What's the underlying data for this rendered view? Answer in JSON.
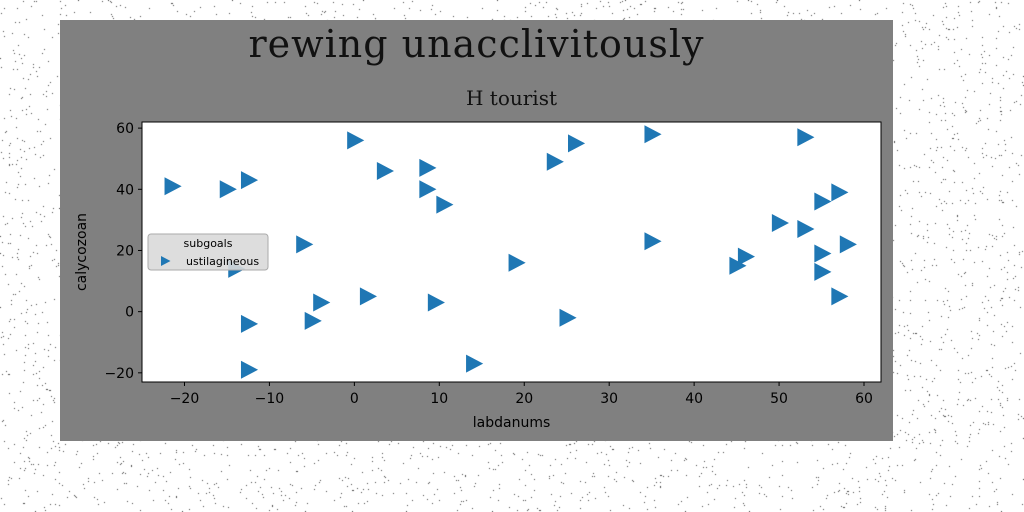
{
  "chart_data": {
    "type": "scatter",
    "title": "rewing unacclivitously",
    "subtitle": "H tourist",
    "xlabel": "labdanums",
    "ylabel": "calycozoan",
    "xlim": [
      -25,
      62
    ],
    "ylim": [
      -23,
      62
    ],
    "xticks": [
      -20,
      -10,
      0,
      10,
      20,
      30,
      40,
      50,
      60
    ],
    "yticks": [
      -20,
      0,
      20,
      40,
      60
    ],
    "marker": "triangle-right",
    "grid": false,
    "legend": {
      "title": "subgoals",
      "placement": "center-left"
    },
    "series": [
      {
        "name": "ustilagineous",
        "color": "#1f77b4",
        "points": [
          [
            -21.5,
            41
          ],
          [
            -15,
            40
          ],
          [
            -12.5,
            43
          ],
          [
            -6,
            22
          ],
          [
            -14,
            14
          ],
          [
            -12.5,
            -4
          ],
          [
            -12.5,
            -19
          ],
          [
            -5,
            -3
          ],
          [
            -4,
            3
          ],
          [
            0,
            56
          ],
          [
            1.5,
            5
          ],
          [
            3.5,
            46
          ],
          [
            8.5,
            47
          ],
          [
            8.5,
            40
          ],
          [
            10.5,
            35
          ],
          [
            9.5,
            3
          ],
          [
            14,
            -17
          ],
          [
            19,
            16
          ],
          [
            23.5,
            49
          ],
          [
            25,
            -2
          ],
          [
            26,
            55
          ],
          [
            35,
            58
          ],
          [
            35,
            23
          ],
          [
            45,
            15
          ],
          [
            46,
            18
          ],
          [
            50,
            29
          ],
          [
            53,
            27
          ],
          [
            53,
            57
          ],
          [
            55,
            36
          ],
          [
            57,
            39
          ],
          [
            58,
            22
          ],
          [
            55,
            19
          ],
          [
            55,
            13
          ],
          [
            57,
            5
          ]
        ]
      }
    ]
  }
}
